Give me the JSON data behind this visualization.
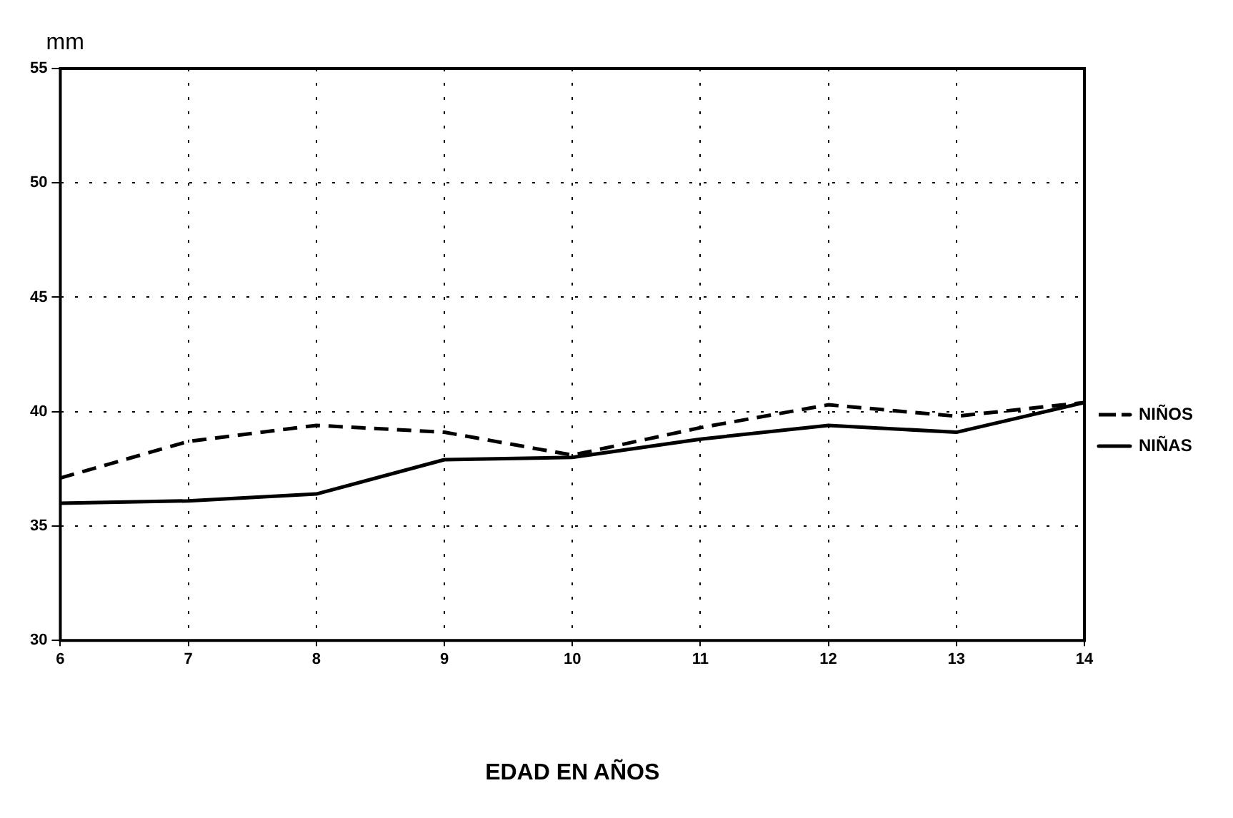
{
  "chart_data": {
    "type": "line",
    "ylabel": "mm",
    "xlabel": "EDAD EN AÑOS",
    "x": [
      6,
      7,
      8,
      9,
      10,
      11,
      12,
      13,
      14
    ],
    "series": [
      {
        "name": "NIÑOS",
        "color": "#000000",
        "line_style": "dashed",
        "values": [
          37.1,
          38.7,
          39.4,
          39.1,
          38.1,
          39.3,
          40.3,
          39.8,
          40.4
        ]
      },
      {
        "name": "NIÑAS",
        "color": "#000000",
        "line_style": "solid",
        "values": [
          36.0,
          36.1,
          36.4,
          37.9,
          38.0,
          38.8,
          39.4,
          39.1,
          40.4
        ]
      }
    ],
    "xlim": [
      6,
      14
    ],
    "xticks": [
      6,
      7,
      8,
      9,
      10,
      11,
      12,
      13,
      14
    ],
    "ylim": [
      30,
      55
    ],
    "yticks": [
      30,
      35,
      40,
      45,
      50,
      55
    ],
    "grid": true,
    "legend": "right",
    "marker": "none"
  }
}
